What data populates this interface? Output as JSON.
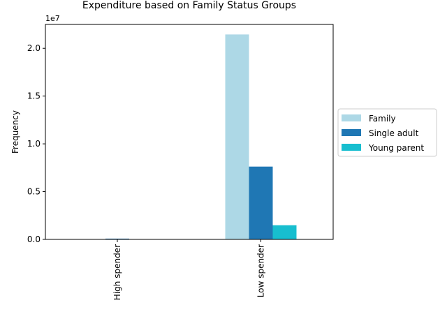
{
  "chart_data": {
    "type": "bar",
    "title": "Expenditure based on Family Status Groups",
    "xlabel": "",
    "ylabel": "Frequency",
    "scale_label": "1e7",
    "categories": [
      "High spender",
      "Low spender"
    ],
    "series": [
      {
        "name": "Family",
        "color": "#add8e6",
        "values": [
          0,
          21450000
        ]
      },
      {
        "name": "Single adult",
        "color": "#1f77b4",
        "values": [
          80000,
          7620000
        ]
      },
      {
        "name": "Young parent",
        "color": "#17becf",
        "values": [
          0,
          1480000
        ]
      }
    ],
    "ylim": [
      0,
      22500000
    ],
    "yticks": [
      {
        "value": 0,
        "label": "0.0"
      },
      {
        "value": 5000000,
        "label": "0.5"
      },
      {
        "value": 10000000,
        "label": "1.0"
      },
      {
        "value": 15000000,
        "label": "1.5"
      },
      {
        "value": 20000000,
        "label": "2.0"
      }
    ],
    "grid": false,
    "legend_position": "right"
  }
}
